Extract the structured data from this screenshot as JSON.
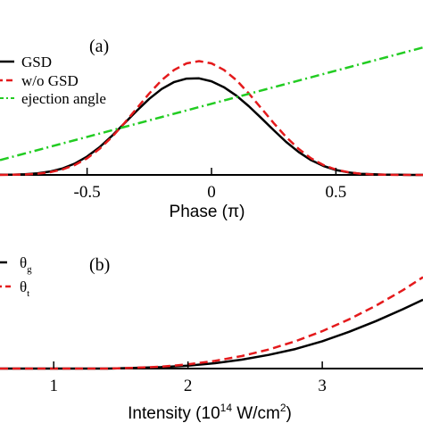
{
  "chart_data": [
    {
      "panel_label": "(a)",
      "type": "line",
      "xlabel": "Phase (π)",
      "xlim": [
        -0.85,
        0.85
      ],
      "ylim": [
        0,
        1.0
      ],
      "x_ticks": [
        -0.5,
        0,
        0.5
      ],
      "x_tick_labels": [
        "-0.5",
        "0",
        "0.5"
      ],
      "legend_placement": "top-left",
      "series": [
        {
          "name": "GSD",
          "color": "#000000",
          "style": "solid",
          "x": [
            -0.85,
            -0.8,
            -0.75,
            -0.7,
            -0.65,
            -0.6,
            -0.55,
            -0.5,
            -0.45,
            -0.4,
            -0.35,
            -0.3,
            -0.25,
            -0.2,
            -0.15,
            -0.1,
            -0.05,
            0,
            0.05,
            0.1,
            0.15,
            0.2,
            0.25,
            0.3,
            0.35,
            0.4,
            0.45,
            0.5,
            0.55,
            0.6,
            0.65,
            0.7,
            0.75,
            0.8,
            0.85
          ],
          "y": [
            0.001,
            0.002,
            0.005,
            0.011,
            0.022,
            0.043,
            0.076,
            0.124,
            0.187,
            0.264,
            0.348,
            0.434,
            0.514,
            0.58,
            0.627,
            0.65,
            0.652,
            0.632,
            0.592,
            0.535,
            0.464,
            0.384,
            0.302,
            0.223,
            0.155,
            0.1,
            0.06,
            0.033,
            0.017,
            0.008,
            0.004,
            0.001,
            0.001,
            0,
            0
          ]
        },
        {
          "name": "w/o GSD",
          "color": "#e41a1c",
          "style": "dashed",
          "x": [
            -0.85,
            -0.8,
            -0.75,
            -0.7,
            -0.65,
            -0.6,
            -0.55,
            -0.5,
            -0.45,
            -0.4,
            -0.35,
            -0.3,
            -0.25,
            -0.2,
            -0.15,
            -0.1,
            -0.05,
            0,
            0.05,
            0.1,
            0.15,
            0.2,
            0.25,
            0.3,
            0.35,
            0.4,
            0.45,
            0.5,
            0.55,
            0.6,
            0.65,
            0.7,
            0.75,
            0.8,
            0.85
          ],
          "y": [
            0,
            0.001,
            0.003,
            0.008,
            0.018,
            0.036,
            0.066,
            0.112,
            0.176,
            0.256,
            0.35,
            0.45,
            0.55,
            0.64,
            0.709,
            0.753,
            0.768,
            0.753,
            0.709,
            0.64,
            0.55,
            0.45,
            0.35,
            0.256,
            0.176,
            0.112,
            0.066,
            0.036,
            0.018,
            0.008,
            0.003,
            0.001,
            0,
            0,
            0
          ]
        },
        {
          "name": "ejection angle",
          "color": "#22cc22",
          "style": "dashdot",
          "x": [
            -0.85,
            0.85
          ],
          "y": [
            0.1,
            0.86
          ]
        }
      ]
    },
    {
      "panel_label": "(b)",
      "type": "line",
      "xlabel": "Intensity (10",
      "xlabel_sup": "14",
      "xlabel_unit": " W/cm",
      "xlabel_unit_sup": "2",
      "xlabel_end": ")",
      "xlim": [
        0.6,
        3.75
      ],
      "ylim": [
        0,
        1.0
      ],
      "x_ticks": [
        1,
        2,
        3
      ],
      "x_tick_labels": [
        "1",
        "2",
        "3"
      ],
      "legend_placement": "top-left",
      "series": [
        {
          "name": "θ",
          "subscript": "g",
          "color": "#000000",
          "style": "solid",
          "x": [
            0.6,
            1.0,
            1.4,
            1.6,
            1.8,
            2.0,
            2.2,
            2.4,
            2.6,
            2.8,
            3.0,
            3.2,
            3.4,
            3.6,
            3.75
          ],
          "y": [
            0,
            0,
            0,
            0.005,
            0.012,
            0.025,
            0.045,
            0.075,
            0.115,
            0.165,
            0.23,
            0.31,
            0.4,
            0.5,
            0.58
          ]
        },
        {
          "name": "θ",
          "subscript": "t",
          "color": "#e41a1c",
          "style": "dashed",
          "x": [
            0.6,
            1.0,
            1.4,
            1.6,
            1.8,
            2.0,
            2.2,
            2.4,
            2.6,
            2.8,
            3.0,
            3.2,
            3.4,
            3.6,
            3.75
          ],
          "y": [
            0,
            0,
            0,
            0.006,
            0.016,
            0.035,
            0.065,
            0.105,
            0.16,
            0.23,
            0.315,
            0.415,
            0.53,
            0.66,
            0.77
          ]
        }
      ]
    }
  ]
}
